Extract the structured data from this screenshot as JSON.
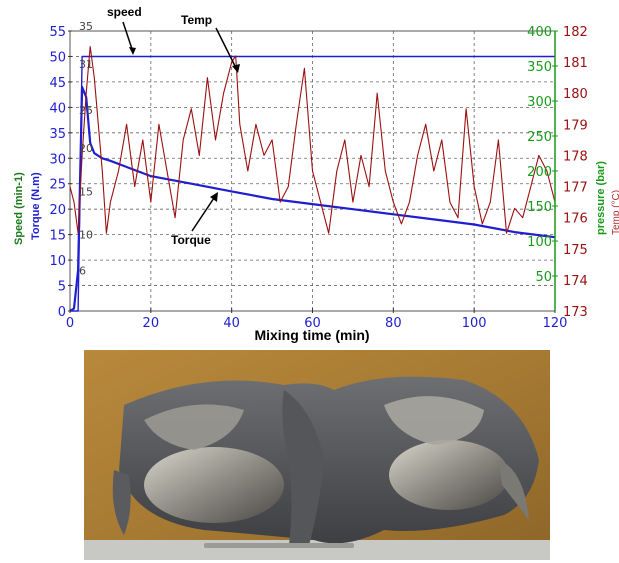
{
  "chart_data": {
    "type": "line",
    "xlabel": "Mixing time (min)",
    "xlim": [
      0,
      120
    ],
    "x_ticks": [
      "0",
      "20",
      "40",
      "60",
      "80",
      "100",
      "120"
    ],
    "axes": {
      "speed_torque": {
        "label_speed": "Speed (min-1)",
        "label_torque": "Torque (N.m)",
        "speed_color": "#1a7a1a",
        "torque_color": "#1f1fd0",
        "ylim": [
          0,
          55
        ],
        "ticks": [
          "0",
          "5",
          "10",
          "15",
          "20",
          "25",
          "30",
          "35",
          "40",
          "45",
          "50",
          "55"
        ],
        "inner_ticks": [
          {
            "label": "35",
            "value": 56
          },
          {
            "label": "31",
            "value": 48.5
          },
          {
            "label": "25",
            "value": 39.5
          },
          {
            "label": "20",
            "value": 32
          },
          {
            "label": "15",
            "value": 23.5
          },
          {
            "label": "10",
            "value": 15
          },
          {
            "label": "6",
            "value": 8
          }
        ]
      },
      "pressure": {
        "label": "pressure (bar)",
        "color": "#1a9a1a",
        "ylim": [
          0,
          400
        ],
        "ticks": [
          "50",
          "100",
          "150",
          "200",
          "250",
          "300",
          "350",
          "400"
        ]
      },
      "temp": {
        "label": "Temp (°C)",
        "color": "#9a1010",
        "ylim": [
          173,
          182
        ],
        "ticks": [
          "173",
          "174",
          "175",
          "176",
          "177",
          "178",
          "179",
          "180",
          "181",
          "182"
        ]
      }
    },
    "series": [
      {
        "name": "speed",
        "color": "#1f1fd0",
        "axis": "speed_torque",
        "x": [
          0,
          2,
          3,
          120
        ],
        "y": [
          0,
          0,
          50,
          50
        ]
      },
      {
        "name": "Torque",
        "color": "#1f1fd0",
        "axis": "speed_torque",
        "x": [
          0,
          1,
          2,
          3,
          4,
          5,
          6,
          8,
          10,
          15,
          20,
          30,
          40,
          50,
          60,
          70,
          80,
          90,
          100,
          110,
          120
        ],
        "y": [
          0,
          0.5,
          8,
          44,
          42,
          33,
          31,
          30,
          29.5,
          28,
          26.5,
          25,
          23.5,
          22,
          21,
          20,
          19,
          18,
          17,
          15.5,
          14.5
        ]
      },
      {
        "name": "Temp",
        "color": "#9a1010",
        "axis": "temp",
        "x": [
          0,
          1,
          2,
          3,
          4,
          5,
          6,
          7,
          8,
          9,
          10,
          12,
          14,
          16,
          18,
          20,
          22,
          24,
          26,
          28,
          30,
          32,
          34,
          36,
          38,
          40,
          41,
          42,
          44,
          46,
          48,
          50,
          52,
          54,
          56,
          58,
          60,
          62,
          64,
          66,
          68,
          70,
          72,
          74,
          76,
          78,
          80,
          82,
          84,
          86,
          88,
          90,
          92,
          94,
          96,
          98,
          100,
          102,
          104,
          106,
          108,
          110,
          112,
          114,
          116,
          118,
          120
        ],
        "y": [
          177,
          176.5,
          175.5,
          178,
          180,
          181.5,
          180.5,
          179,
          177.5,
          175.5,
          176.5,
          177.5,
          179,
          177,
          178.5,
          176.5,
          179,
          177.5,
          176,
          178.5,
          179.5,
          178,
          180.5,
          178.5,
          180,
          181,
          181.2,
          179,
          177.5,
          179,
          178,
          178.5,
          176.5,
          177,
          179,
          180.8,
          177.5,
          176.5,
          175.5,
          177.5,
          178.5,
          176.5,
          178,
          177,
          180,
          177.5,
          176.5,
          175.8,
          176.5,
          178,
          179,
          177.5,
          178.5,
          176.5,
          176,
          179.5,
          177,
          175.8,
          176.5,
          178.5,
          175.5,
          176.3,
          176,
          177,
          178,
          177.5,
          176.5
        ]
      }
    ],
    "annotations": [
      {
        "text": "speed"
      },
      {
        "text": "Temp"
      },
      {
        "text": "Torque"
      }
    ],
    "grid": true
  },
  "photo": {
    "description_icon": "mixer-rotor-photo"
  }
}
